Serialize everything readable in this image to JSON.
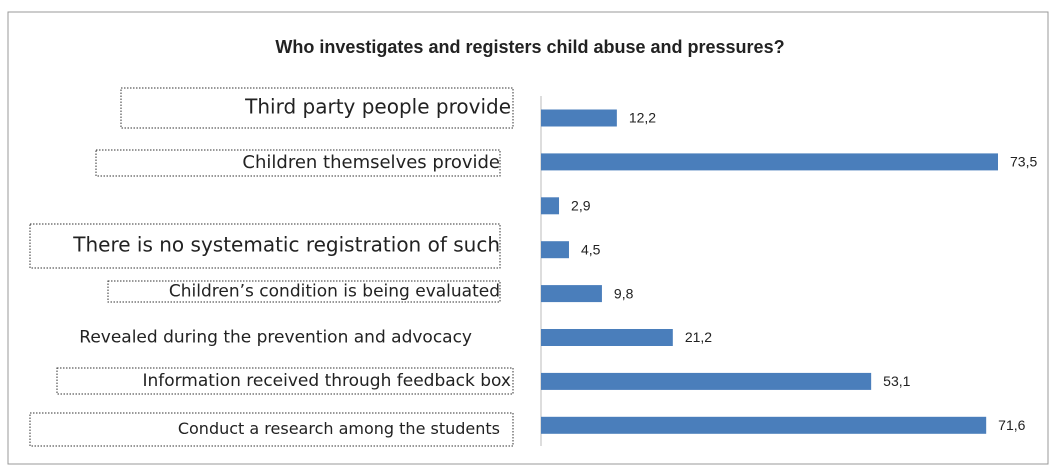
{
  "chart_data": {
    "type": "bar",
    "orientation": "horizontal",
    "title": "Who investigates and registers child abuse and pressures?",
    "categories": [
      "Third party people provide",
      "Children themselves provide",
      null,
      "There is no systematic registration of such",
      "Children’s condition is being evaluated",
      "Revealed during the prevention and advocacy",
      "Information received through feedback box",
      "Conduct a research among the students"
    ],
    "values": [
      12.2,
      73.5,
      2.9,
      4.5,
      9.8,
      21.2,
      53.1,
      71.6
    ],
    "value_labels": [
      "12,2",
      "73,5",
      "2,9",
      "4,5",
      "9,8",
      "21,2",
      "53,1",
      "71,6"
    ],
    "color": "#4a7ebb"
  }
}
